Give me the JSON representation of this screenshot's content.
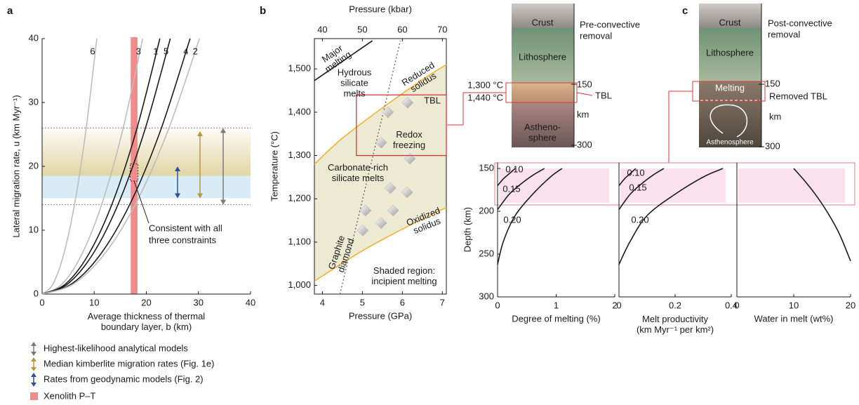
{
  "panel_labels": [
    "a",
    "b",
    "c"
  ],
  "chart_data": [
    {
      "type": "line",
      "xlabel": [
        "Average thickness of thermal",
        "boundary layer, b (km)"
      ],
      "ylabel": "Lateral migration rate, u (km Myr⁻¹)",
      "xlim": [
        0,
        40
      ],
      "ylim": [
        0,
        40
      ],
      "xticks": [
        0,
        10,
        20,
        30,
        40
      ],
      "yticks": [
        0,
        10,
        20,
        30,
        40
      ],
      "series": [
        {
          "name": "6",
          "color": "#bdbdbd",
          "x": [
            0,
            2.1,
            4.2,
            6.3,
            8.4,
            10.5
          ],
          "values": [
            0,
            1.6,
            6.4,
            14.4,
            25.6,
            40
          ]
        },
        {
          "name": "3",
          "color": "#bdbdbd",
          "x": [
            0,
            3.86,
            7.72,
            11.58,
            15.44,
            19.3
          ],
          "values": [
            0,
            1.6,
            6.4,
            14.4,
            25.6,
            40
          ]
        },
        {
          "name": "1",
          "color": "#1a1a1a",
          "x": [
            0,
            4.52,
            9.04,
            13.56,
            18.08,
            22.6
          ],
          "values": [
            0,
            1.6,
            6.4,
            14.4,
            25.6,
            40
          ]
        },
        {
          "name": "5",
          "color": "#1a1a1a",
          "x": [
            0,
            4.92,
            9.84,
            14.76,
            19.68,
            24.6
          ],
          "values": [
            0,
            1.6,
            6.4,
            14.4,
            25.6,
            40
          ]
        },
        {
          "name": "4",
          "color": "#1a1a1a",
          "x": [
            0,
            5.68,
            11.36,
            17.04,
            22.72,
            28.4
          ],
          "values": [
            0,
            1.6,
            6.4,
            14.4,
            25.6,
            40
          ]
        },
        {
          "name": "2",
          "color": "#bdbdbd",
          "x": [
            0,
            6.04,
            12.08,
            18.12,
            24.16,
            30.2
          ],
          "values": [
            0,
            1.6,
            6.4,
            14.4,
            25.6,
            40
          ]
        }
      ],
      "shades": [
        {
          "color": "#c9b45a",
          "lo": 18.5,
          "hi": 26,
          "fade": true
        },
        {
          "color": "#d9ecf5",
          "lo": 15,
          "hi": 18.5,
          "fade": false
        }
      ],
      "ranges": [
        {
          "name": "Highest-likelihood analytical models",
          "color": "#7a7a7a",
          "lo": 14,
          "hi": 26,
          "guides": true
        },
        {
          "name": "Median kimberlite migration rates (Fig. 1e)",
          "color": "#b8963a",
          "lo": 15,
          "hi": 25.5,
          "guides": false
        },
        {
          "name": "Rates from geodynamic models (Fig. 2)",
          "color": "#2c4f9e",
          "lo": 15,
          "hi": 20,
          "guides": false
        }
      ],
      "xenolith": {
        "name": "Xenolith P–T",
        "color": "#f28b8b",
        "lo": 17,
        "hi": 18.3
      },
      "annotation": {
        "text": [
          "Consistent with all",
          "three constraints"
        ],
        "box_x": [
          16.9,
          18.4
        ],
        "box_y": [
          17.7,
          20.4
        ]
      }
    },
    {
      "type": "line",
      "xlabel": "Pressure (GPa)",
      "x2label": "Pressure (kbar)",
      "ylabel": "Temperature (°C)",
      "xlim": [
        3.8,
        7.1
      ],
      "x2lim": [
        38,
        71
      ],
      "ylim": [
        980,
        1570
      ],
      "xticks": [
        4,
        5,
        6,
        7
      ],
      "x2ticks": [
        40,
        50,
        60,
        70
      ],
      "yticks": [
        {
          "value": 1000,
          "label": "1,000"
        },
        {
          "value": 1100,
          "label": "1,100"
        },
        {
          "value": 1200,
          "label": "1,200"
        },
        {
          "value": 1300,
          "label": "1,300"
        },
        {
          "value": 1400,
          "label": "1,400"
        },
        {
          "value": 1500,
          "label": "1,500"
        }
      ],
      "series": [
        {
          "name": [
            "Reduced",
            "solidus"
          ],
          "color": "#f2b134",
          "x": [
            3.8,
            4.5,
            5.5,
            6.5,
            7.1
          ],
          "values": [
            1280,
            1340,
            1410,
            1475,
            1510
          ]
        },
        {
          "name": [
            "Oxidized",
            "solidus"
          ],
          "color": "#f2b134",
          "x": [
            3.8,
            5,
            6,
            7.1
          ],
          "values": [
            1010,
            1080,
            1130,
            1180
          ]
        },
        {
          "name": [
            "Major",
            "melting"
          ],
          "color": "#1a1a1a",
          "x": [
            3.8,
            5.25
          ],
          "values": [
            1473,
            1565
          ]
        },
        {
          "name": [
            "Graphite",
            "diamond"
          ],
          "color": "#555555",
          "dashed": true,
          "x": [
            4.44,
            5.95
          ],
          "values": [
            980,
            1565
          ]
        }
      ],
      "shade_between": [
        0,
        1
      ],
      "shade_color": "#ecead2",
      "points": {
        "x": [
          5.64,
          6.13,
          5.47,
          6.19,
          5.7,
          6.12,
          5.08,
          5.77,
          5.01,
          5.47
        ],
        "values": [
          1400,
          1422,
          1330,
          1293,
          1225,
          1215,
          1173,
          1173,
          1127,
          1144
        ]
      },
      "tbl_box": {
        "label": "TBL",
        "x": [
          4.85,
          7.1
        ],
        "y": [
          1300,
          1440
        ]
      },
      "labels": {
        "hydrous": [
          "Hydrous",
          "silicate",
          "melts"
        ],
        "redox": [
          "Redox",
          "freezing"
        ],
        "carbonate": [
          "Carbonate-rich",
          "silicate melts"
        ],
        "shaded": [
          "Shaded region:",
          "incipient melting"
        ]
      }
    },
    {
      "type": "line",
      "xlabel": "Degree of melting (%)",
      "ylabel": "Depth (km)",
      "xlim": [
        0,
        2
      ],
      "ylim": [
        143,
        300
      ],
      "y_inverted": true,
      "xticks": [
        0,
        1,
        2
      ],
      "yticks": [
        150,
        200,
        250,
        300
      ],
      "band": [
        150,
        190
      ],
      "series": [
        {
          "name": "0.10",
          "color": "#1a1a1a",
          "x": [
            0,
            0.1,
            0.2,
            0.3
          ],
          "values": [
            170,
            162,
            156,
            150
          ]
        },
        {
          "name": "0.15",
          "color": "#1a1a1a",
          "x": [
            0,
            0.2,
            0.4,
            0.6,
            0.8
          ],
          "values": [
            198,
            180,
            168,
            158,
            150
          ]
        },
        {
          "name": "0.20",
          "color": "#1a1a1a",
          "x": [
            0,
            0.1,
            0.3,
            0.6,
            0.9,
            1.1
          ],
          "values": [
            262,
            235,
            205,
            180,
            160,
            150
          ]
        }
      ]
    },
    {
      "type": "line",
      "xlabel": [
        "Melt productivity",
        "(km Myr⁻¹ per km²)"
      ],
      "xlim": [
        0,
        0.4
      ],
      "ylim": [
        143,
        300
      ],
      "y_inverted": true,
      "xticks": [
        0,
        0.2,
        0.4
      ],
      "band": [
        150,
        190
      ],
      "series": [
        {
          "name": "0.10",
          "color": "#1a1a1a",
          "x": [
            0,
            0.02,
            0.04,
            0.06
          ],
          "values": [
            170,
            162,
            156,
            150
          ]
        },
        {
          "name": "0.15",
          "color": "#1a1a1a",
          "x": [
            0,
            0.04,
            0.08,
            0.12,
            0.16
          ],
          "values": [
            198,
            180,
            168,
            158,
            150
          ]
        },
        {
          "name": "0.20",
          "color": "#1a1a1a",
          "x": [
            0,
            0.04,
            0.1,
            0.2,
            0.3,
            0.37
          ],
          "values": [
            262,
            235,
            205,
            180,
            160,
            150
          ]
        }
      ]
    },
    {
      "type": "line",
      "xlabel": "Water in melt (wt%)",
      "xlim": [
        0,
        20
      ],
      "ylim": [
        143,
        300
      ],
      "y_inverted": true,
      "xticks": [
        0,
        10,
        20
      ],
      "band": [
        150,
        190
      ],
      "series": [
        {
          "color": "#1a1a1a",
          "x": [
            10,
            12,
            14,
            16,
            18,
            20
          ],
          "values": [
            150,
            165,
            182,
            202,
            226,
            258
          ]
        }
      ]
    }
  ],
  "schematics": [
    {
      "title": [
        "Pre-convective",
        "removal"
      ],
      "crust": "Crust",
      "lithosphere": "Lithosphere",
      "asthenosphere": [
        "Astheno-",
        "sphere"
      ],
      "temps": [
        "1,300 °C",
        "1,440 °C"
      ],
      "tbl": "TBL",
      "depth_ticks": [
        "150",
        "300"
      ],
      "depth_unit": "km"
    },
    {
      "title": [
        "Post-convective",
        "removal"
      ],
      "crust": "Crust",
      "lithosphere": "Lithosphere",
      "asthenosphere": "Asthenosphere",
      "melting": "Melting",
      "tbl": "Removed TBL",
      "depth_ticks": [
        "150",
        "300"
      ],
      "depth_unit": "km"
    }
  ]
}
